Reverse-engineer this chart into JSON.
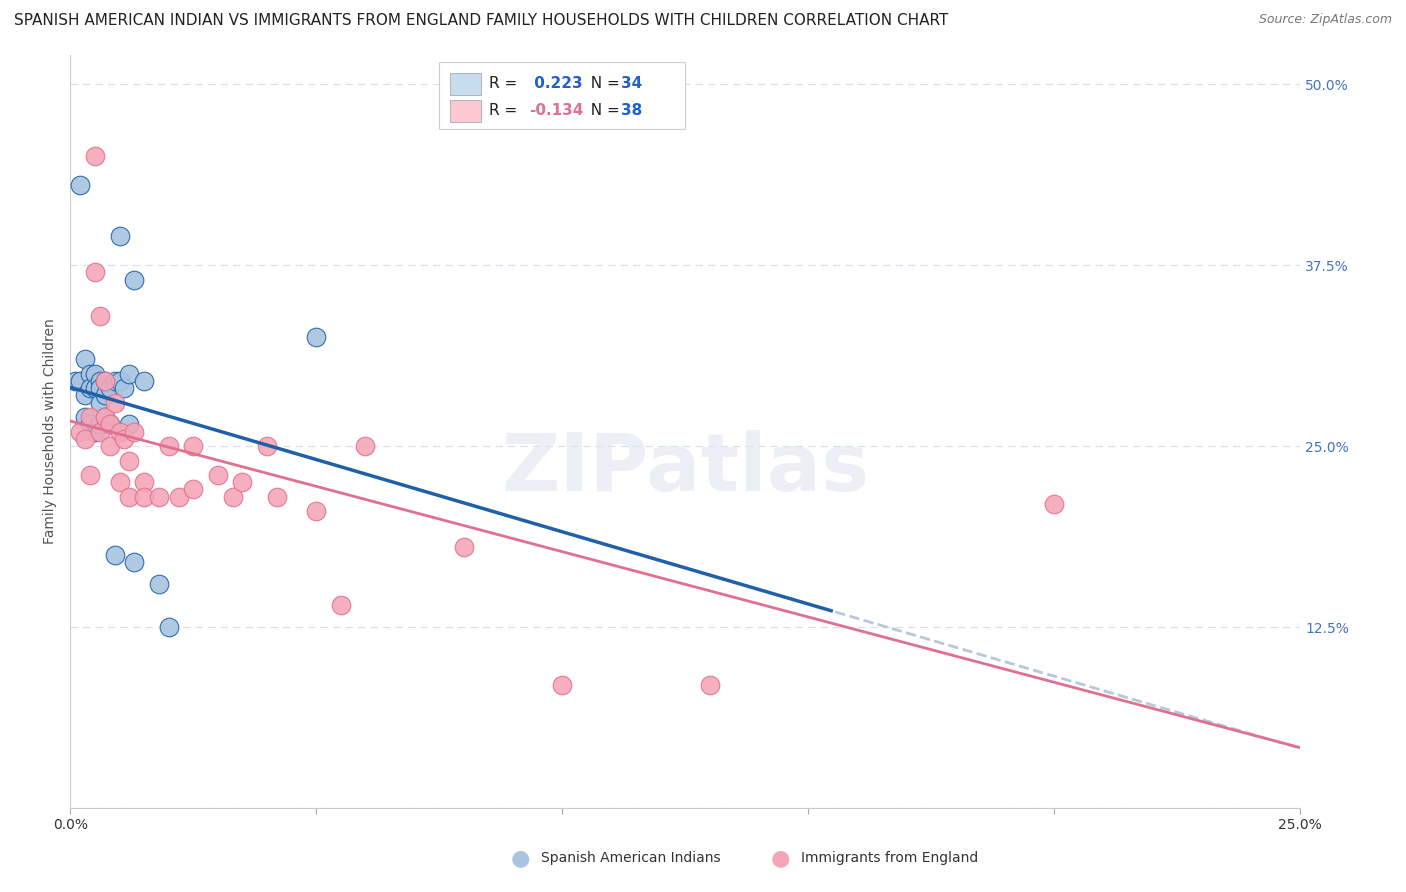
{
  "title": "SPANISH AMERICAN INDIAN VS IMMIGRANTS FROM ENGLAND FAMILY HOUSEHOLDS WITH CHILDREN CORRELATION CHART",
  "source": "Source: ZipAtlas.com",
  "ylabel": "Family Households with Children",
  "xlim": [
    0.0,
    0.25
  ],
  "ylim": [
    0.0,
    0.52
  ],
  "xticks": [
    0.0,
    0.05,
    0.1,
    0.15,
    0.2,
    0.25
  ],
  "xticklabels": [
    "0.0%",
    "",
    "",
    "",
    "",
    "25.0%"
  ],
  "yticks": [
    0.0,
    0.125,
    0.25,
    0.375,
    0.5
  ],
  "yticklabels": [
    "",
    "12.5%",
    "25.0%",
    "37.5%",
    "50.0%"
  ],
  "R_blue": 0.223,
  "N_blue": 34,
  "R_pink": -0.134,
  "N_pink": 38,
  "blue_scatter_x": [
    0.001,
    0.002,
    0.002,
    0.003,
    0.003,
    0.003,
    0.004,
    0.004,
    0.004,
    0.005,
    0.005,
    0.005,
    0.006,
    0.006,
    0.006,
    0.006,
    0.007,
    0.007,
    0.007,
    0.008,
    0.008,
    0.009,
    0.009,
    0.01,
    0.01,
    0.011,
    0.012,
    0.012,
    0.013,
    0.013,
    0.015,
    0.018,
    0.02,
    0.05
  ],
  "blue_scatter_y": [
    0.295,
    0.43,
    0.295,
    0.31,
    0.285,
    0.27,
    0.3,
    0.29,
    0.265,
    0.3,
    0.29,
    0.26,
    0.295,
    0.29,
    0.28,
    0.265,
    0.295,
    0.285,
    0.27,
    0.29,
    0.265,
    0.295,
    0.175,
    0.395,
    0.295,
    0.29,
    0.3,
    0.265,
    0.365,
    0.17,
    0.295,
    0.155,
    0.125,
    0.325
  ],
  "pink_scatter_x": [
    0.002,
    0.003,
    0.004,
    0.004,
    0.005,
    0.005,
    0.006,
    0.006,
    0.007,
    0.007,
    0.008,
    0.008,
    0.009,
    0.01,
    0.01,
    0.011,
    0.012,
    0.012,
    0.013,
    0.015,
    0.015,
    0.018,
    0.02,
    0.022,
    0.025,
    0.025,
    0.03,
    0.033,
    0.035,
    0.04,
    0.042,
    0.05,
    0.055,
    0.06,
    0.08,
    0.1,
    0.13,
    0.2
  ],
  "pink_scatter_y": [
    0.26,
    0.255,
    0.27,
    0.23,
    0.45,
    0.37,
    0.34,
    0.26,
    0.295,
    0.27,
    0.265,
    0.25,
    0.28,
    0.26,
    0.225,
    0.255,
    0.24,
    0.215,
    0.26,
    0.225,
    0.215,
    0.215,
    0.25,
    0.215,
    0.25,
    0.22,
    0.23,
    0.215,
    0.225,
    0.25,
    0.215,
    0.205,
    0.14,
    0.25,
    0.18,
    0.085,
    0.085,
    0.21
  ],
  "blue_color": "#a8c4e0",
  "pink_color": "#f4a6b8",
  "blue_line_color": "#2060a8",
  "pink_line_color": "#e07090",
  "dashed_line_color": "#b8c8d8",
  "legend_blue_fill": "#c8dcf0",
  "legend_pink_fill": "#fcc8d4",
  "watermark_text": "ZIPatlas",
  "background_color": "#ffffff",
  "grid_color": "#d8e0ec",
  "right_tick_color": "#4472c4",
  "title_fontsize": 11,
  "axis_label_fontsize": 10,
  "tick_fontsize": 10,
  "legend_fontsize": 11,
  "blue_r_color": "#2060c8",
  "pink_r_color": "#e07090",
  "blue_label": "Spanish American Indians",
  "pink_label": "Immigrants from England"
}
